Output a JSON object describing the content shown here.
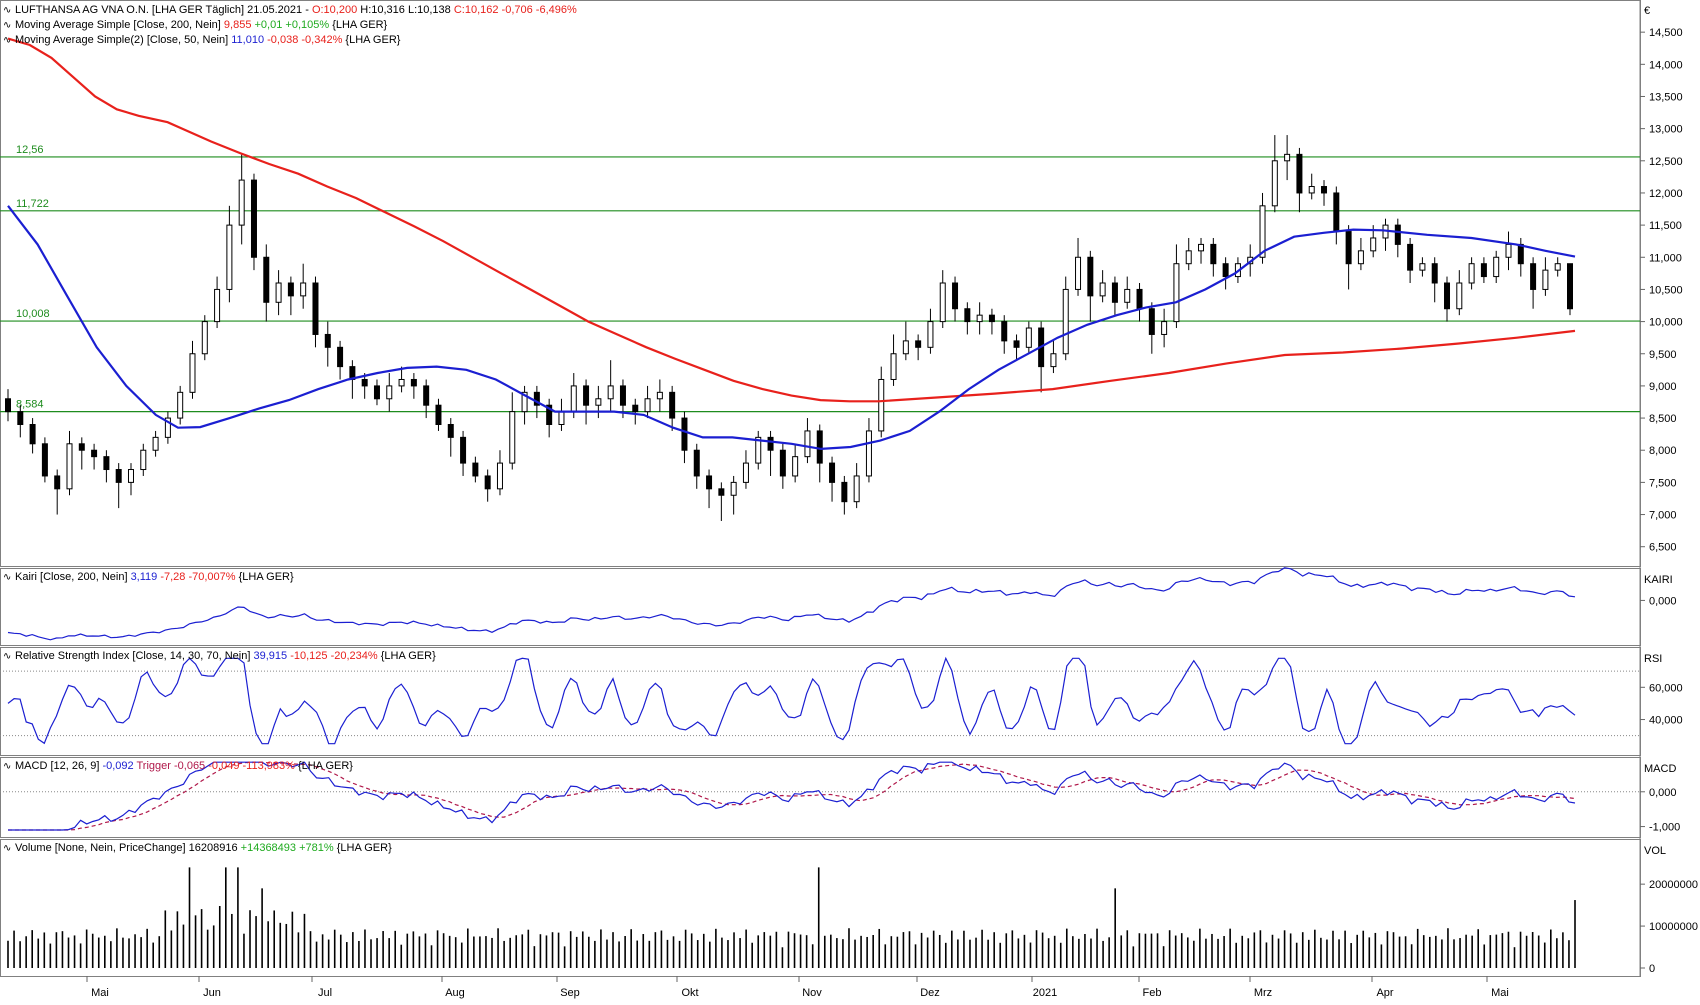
{
  "colors": {
    "price": "#000000",
    "ma200": "#e8211c",
    "ma50": "#1b1fd1",
    "support": "#1e8c1e",
    "indicator": "#1b1fd1",
    "trigger": "#b0184a",
    "up": "#1faa1f",
    "down": "#e8211c",
    "grid": "#9a9a9a"
  },
  "legend": {
    "main": [
      {
        "prefix": "LUFTHANSA AG VNA O.N. [LHA GER Täglich] 21.05.2021 - ",
        "o": "O:10,200",
        "h": " H:10,316",
        "l": " L:10,138",
        "c": " C:10,162",
        "chg": " -0,706",
        "pct": " -6,496%"
      },
      {
        "prefix": "Moving Average Simple [Close, 200, Nein] ",
        "val": "9,855",
        "chg": " +0,01",
        "pct": " +0,105%",
        "suffix": " {LHA GER}"
      },
      {
        "prefix": "Moving Average Simple(2) [Close, 50, Nein] ",
        "val": "11,010",
        "chg": " -0,038",
        "pct": " -0,342%",
        "suffix": " {LHA GER}"
      }
    ],
    "kairi": {
      "prefix": "Kairi [Close, 200, Nein] ",
      "val": "3,119",
      "chg": " -7,28",
      "pct": " -70,007%",
      "suffix": " {LHA GER}"
    },
    "rsi": {
      "prefix": "Relative Strength Index [Close, 14, 30, 70, Nein] ",
      "val": "39,915",
      "chg": " -10,125",
      "pct": " -20,234%",
      "suffix": " {LHA GER}"
    },
    "macd": {
      "prefix": "MACD [12, 26, 9] ",
      "val": "-0,092",
      "trig": " Trigger -0,065",
      "chg": " -0,049",
      "pct": " -113,983%",
      "suffix": " {LHA GER}"
    },
    "volume": {
      "prefix": "Volume [None, Nein, PriceChange] ",
      "val": "16208916",
      "chg": " +14368493",
      "pct": " +781%",
      "suffix": " {LHA GER}"
    }
  },
  "panel_labels": {
    "currency": "€",
    "kairi": "KAIRI",
    "rsi": "RSI",
    "macd": "MACD",
    "vol": "VOL"
  },
  "chart_data": {
    "type": "line",
    "instrument": "LUFTHANSA AG VNA O.N.",
    "x_months": [
      "Mai",
      "Jun",
      "Jul",
      "Aug",
      "Sep",
      "Okt",
      "Nov",
      "Dez",
      "2021",
      "Feb",
      "Mrz",
      "Apr",
      "Mai"
    ],
    "price_axis": {
      "ticks": [
        "14,500",
        "14,000",
        "13,500",
        "13,000",
        "12,500",
        "12,000",
        "11,500",
        "11,000",
        "10,500",
        "10,000",
        "9,500",
        "9,000",
        "8,500",
        "8,000",
        "7,500",
        "7,000",
        "6,500"
      ],
      "range": [
        6.2,
        15.0
      ]
    },
    "support_levels": [
      {
        "label": "12,56",
        "value": 12.56
      },
      {
        "label": "11,722",
        "value": 11.722
      },
      {
        "label": "10,008",
        "value": 10.008
      },
      {
        "label": "8,584",
        "value": 8.6
      }
    ],
    "candles": [
      [
        8.8,
        8.6,
        8.95,
        8.45
      ],
      [
        8.6,
        8.4,
        8.7,
        8.2
      ],
      [
        8.4,
        8.1,
        8.5,
        7.95
      ],
      [
        8.1,
        7.6,
        8.2,
        7.5
      ],
      [
        7.6,
        7.4,
        7.7,
        7.0
      ],
      [
        7.4,
        8.1,
        8.3,
        7.3
      ],
      [
        8.1,
        8.0,
        8.2,
        7.7
      ],
      [
        8.0,
        7.9,
        8.1,
        7.7
      ],
      [
        7.9,
        7.7,
        8.0,
        7.5
      ],
      [
        7.7,
        7.5,
        7.8,
        7.1
      ],
      [
        7.5,
        7.7,
        7.8,
        7.3
      ],
      [
        7.7,
        8.0,
        8.1,
        7.6
      ],
      [
        8.0,
        8.2,
        8.3,
        7.9
      ],
      [
        8.2,
        8.5,
        8.6,
        8.1
      ],
      [
        8.5,
        8.9,
        9.0,
        8.4
      ],
      [
        8.9,
        9.5,
        9.7,
        8.8
      ],
      [
        9.5,
        10.0,
        10.1,
        9.4
      ],
      [
        10.0,
        10.5,
        10.7,
        9.9
      ],
      [
        10.5,
        11.5,
        11.8,
        10.3
      ],
      [
        11.5,
        12.2,
        12.6,
        11.2
      ],
      [
        12.2,
        11.0,
        12.3,
        10.8
      ],
      [
        11.0,
        10.3,
        11.2,
        10.0
      ],
      [
        10.3,
        10.6,
        10.8,
        10.1
      ],
      [
        10.6,
        10.4,
        10.7,
        10.1
      ],
      [
        10.4,
        10.6,
        10.9,
        10.2
      ],
      [
        10.6,
        9.8,
        10.7,
        9.6
      ],
      [
        9.8,
        9.6,
        10.0,
        9.3
      ],
      [
        9.6,
        9.3,
        9.7,
        9.1
      ],
      [
        9.3,
        9.1,
        9.4,
        8.8
      ],
      [
        9.1,
        9.0,
        9.2,
        8.8
      ],
      [
        9.0,
        8.8,
        9.1,
        8.7
      ],
      [
        8.8,
        9.0,
        9.2,
        8.6
      ],
      [
        9.0,
        9.1,
        9.3,
        8.9
      ],
      [
        9.1,
        9.0,
        9.2,
        8.8
      ],
      [
        9.0,
        8.7,
        9.1,
        8.5
      ],
      [
        8.7,
        8.4,
        8.8,
        8.3
      ],
      [
        8.4,
        8.2,
        8.5,
        7.9
      ],
      [
        8.2,
        7.8,
        8.3,
        7.6
      ],
      [
        7.8,
        7.6,
        7.9,
        7.5
      ],
      [
        7.6,
        7.4,
        7.7,
        7.2
      ],
      [
        7.4,
        7.8,
        8.0,
        7.3
      ],
      [
        7.8,
        8.6,
        8.9,
        7.7
      ],
      [
        8.6,
        8.9,
        9.0,
        8.4
      ],
      [
        8.9,
        8.7,
        9.0,
        8.5
      ],
      [
        8.7,
        8.4,
        8.8,
        8.2
      ],
      [
        8.4,
        8.6,
        8.8,
        8.3
      ],
      [
        8.6,
        9.0,
        9.2,
        8.5
      ],
      [
        9.0,
        8.7,
        9.1,
        8.4
      ],
      [
        8.7,
        8.8,
        9.0,
        8.5
      ],
      [
        8.8,
        9.0,
        9.4,
        8.6
      ],
      [
        9.0,
        8.7,
        9.1,
        8.5
      ],
      [
        8.7,
        8.6,
        8.8,
        8.4
      ],
      [
        8.6,
        8.8,
        9.0,
        8.5
      ],
      [
        8.8,
        8.9,
        9.1,
        8.6
      ],
      [
        8.9,
        8.5,
        9.0,
        8.3
      ],
      [
        8.5,
        8.0,
        8.6,
        7.8
      ],
      [
        8.0,
        7.6,
        8.1,
        7.4
      ],
      [
        7.6,
        7.4,
        7.7,
        7.1
      ],
      [
        7.4,
        7.3,
        7.5,
        6.9
      ],
      [
        7.3,
        7.5,
        7.6,
        7.0
      ],
      [
        7.5,
        7.8,
        8.0,
        7.4
      ],
      [
        7.8,
        8.2,
        8.3,
        7.7
      ],
      [
        8.2,
        8.0,
        8.3,
        7.6
      ],
      [
        8.0,
        7.6,
        8.1,
        7.4
      ],
      [
        7.6,
        7.9,
        8.1,
        7.5
      ],
      [
        7.9,
        8.3,
        8.5,
        7.8
      ],
      [
        8.3,
        7.8,
        8.4,
        7.5
      ],
      [
        7.8,
        7.5,
        7.9,
        7.2
      ],
      [
        7.5,
        7.2,
        7.6,
        7.0
      ],
      [
        7.2,
        7.6,
        7.8,
        7.1
      ],
      [
        7.6,
        8.3,
        8.5,
        7.5
      ],
      [
        8.3,
        9.1,
        9.3,
        8.2
      ],
      [
        9.1,
        9.5,
        9.8,
        9.0
      ],
      [
        9.5,
        9.7,
        10.0,
        9.4
      ],
      [
        9.7,
        9.6,
        9.8,
        9.4
      ],
      [
        9.6,
        10.0,
        10.2,
        9.5
      ],
      [
        10.0,
        10.6,
        10.8,
        9.9
      ],
      [
        10.6,
        10.2,
        10.7,
        10.0
      ],
      [
        10.2,
        10.0,
        10.3,
        9.8
      ],
      [
        10.0,
        10.1,
        10.3,
        9.8
      ],
      [
        10.1,
        10.0,
        10.2,
        9.8
      ],
      [
        10.0,
        9.7,
        10.1,
        9.5
      ],
      [
        9.7,
        9.6,
        9.8,
        9.4
      ],
      [
        9.6,
        9.9,
        10.0,
        9.5
      ],
      [
        9.9,
        9.3,
        10.0,
        8.9
      ],
      [
        9.3,
        9.5,
        9.7,
        9.2
      ],
      [
        9.5,
        10.5,
        10.7,
        9.4
      ],
      [
        10.5,
        11.0,
        11.3,
        10.4
      ],
      [
        11.0,
        10.4,
        11.1,
        10.0
      ],
      [
        10.4,
        10.6,
        10.8,
        10.3
      ],
      [
        10.6,
        10.3,
        10.7,
        10.1
      ],
      [
        10.3,
        10.5,
        10.7,
        10.2
      ],
      [
        10.5,
        10.2,
        10.6,
        10.0
      ],
      [
        10.2,
        9.8,
        10.3,
        9.5
      ],
      [
        9.8,
        10.0,
        10.2,
        9.6
      ],
      [
        10.0,
        10.9,
        11.2,
        9.9
      ],
      [
        10.9,
        11.1,
        11.3,
        10.8
      ],
      [
        11.1,
        11.2,
        11.3,
        10.9
      ],
      [
        11.2,
        10.9,
        11.3,
        10.7
      ],
      [
        10.9,
        10.7,
        11.0,
        10.5
      ],
      [
        10.7,
        10.9,
        11.0,
        10.6
      ],
      [
        10.9,
        11.0,
        11.2,
        10.7
      ],
      [
        11.0,
        11.8,
        12.0,
        10.9
      ],
      [
        11.8,
        12.5,
        12.9,
        11.7
      ],
      [
        12.5,
        12.6,
        12.9,
        12.2
      ],
      [
        12.6,
        12.0,
        12.7,
        11.7
      ],
      [
        12.0,
        12.1,
        12.3,
        11.9
      ],
      [
        12.1,
        12.0,
        12.2,
        11.8
      ],
      [
        12.0,
        11.4,
        12.1,
        11.2
      ],
      [
        11.4,
        10.9,
        11.5,
        10.5
      ],
      [
        10.9,
        11.1,
        11.3,
        10.8
      ],
      [
        11.1,
        11.3,
        11.5,
        11.0
      ],
      [
        11.3,
        11.5,
        11.6,
        11.1
      ],
      [
        11.5,
        11.2,
        11.6,
        11.0
      ],
      [
        11.2,
        10.8,
        11.3,
        10.6
      ],
      [
        10.8,
        10.9,
        11.0,
        10.7
      ],
      [
        10.9,
        10.6,
        11.0,
        10.3
      ],
      [
        10.6,
        10.2,
        10.7,
        10.0
      ],
      [
        10.2,
        10.6,
        10.8,
        10.1
      ],
      [
        10.6,
        10.9,
        11.0,
        10.5
      ],
      [
        10.9,
        10.7,
        11.0,
        10.6
      ],
      [
        10.7,
        11.0,
        11.1,
        10.6
      ],
      [
        11.0,
        11.2,
        11.4,
        10.8
      ],
      [
        11.2,
        10.9,
        11.3,
        10.7
      ],
      [
        10.9,
        10.5,
        11.0,
        10.2
      ],
      [
        10.5,
        10.8,
        11.0,
        10.4
      ],
      [
        10.8,
        10.9,
        11.0,
        10.7
      ],
      [
        10.9,
        10.2,
        10.9,
        10.1
      ]
    ],
    "sma_200": [
      [
        0,
        14.4
      ],
      [
        15,
        14.3
      ],
      [
        30,
        14.1
      ],
      [
        45,
        13.8
      ],
      [
        60,
        13.5
      ],
      [
        75,
        13.3
      ],
      [
        90,
        13.2
      ],
      [
        110,
        13.1
      ],
      [
        125,
        12.95
      ],
      [
        140,
        12.8
      ],
      [
        160,
        12.62
      ],
      [
        180,
        12.45
      ],
      [
        200,
        12.3
      ],
      [
        220,
        12.1
      ],
      [
        240,
        11.92
      ],
      [
        260,
        11.7
      ],
      [
        280,
        11.48
      ],
      [
        300,
        11.25
      ],
      [
        320,
        11.0
      ],
      [
        340,
        10.75
      ],
      [
        360,
        10.5
      ],
      [
        380,
        10.25
      ],
      [
        400,
        10.0
      ],
      [
        420,
        9.8
      ],
      [
        440,
        9.6
      ],
      [
        460,
        9.42
      ],
      [
        480,
        9.25
      ],
      [
        500,
        9.08
      ],
      [
        520,
        8.95
      ],
      [
        540,
        8.85
      ],
      [
        560,
        8.78
      ],
      [
        580,
        8.76
      ],
      [
        600,
        8.76
      ],
      [
        640,
        8.82
      ],
      [
        680,
        8.88
      ],
      [
        720,
        8.95
      ],
      [
        760,
        9.08
      ],
      [
        800,
        9.2
      ],
      [
        840,
        9.35
      ],
      [
        880,
        9.48
      ],
      [
        920,
        9.52
      ],
      [
        960,
        9.58
      ],
      [
        1000,
        9.66
      ],
      [
        1040,
        9.75
      ],
      [
        1080,
        9.855
      ]
    ],
    "sma_50": [
      [
        0,
        11.8
      ],
      [
        20,
        11.2
      ],
      [
        40,
        10.4
      ],
      [
        60,
        9.6
      ],
      [
        80,
        9.0
      ],
      [
        100,
        8.55
      ],
      [
        115,
        8.35
      ],
      [
        130,
        8.36
      ],
      [
        150,
        8.5
      ],
      [
        170,
        8.65
      ],
      [
        190,
        8.78
      ],
      [
        210,
        8.95
      ],
      [
        230,
        9.1
      ],
      [
        250,
        9.2
      ],
      [
        270,
        9.28
      ],
      [
        290,
        9.3
      ],
      [
        310,
        9.25
      ],
      [
        330,
        9.1
      ],
      [
        350,
        8.85
      ],
      [
        370,
        8.6
      ],
      [
        390,
        8.6
      ],
      [
        410,
        8.6
      ],
      [
        430,
        8.55
      ],
      [
        450,
        8.35
      ],
      [
        470,
        8.2
      ],
      [
        490,
        8.2
      ],
      [
        510,
        8.15
      ],
      [
        530,
        8.1
      ],
      [
        550,
        8.02
      ],
      [
        570,
        8.05
      ],
      [
        590,
        8.15
      ],
      [
        610,
        8.3
      ],
      [
        630,
        8.6
      ],
      [
        650,
        8.95
      ],
      [
        670,
        9.25
      ],
      [
        690,
        9.5
      ],
      [
        710,
        9.75
      ],
      [
        730,
        9.95
      ],
      [
        750,
        10.1
      ],
      [
        770,
        10.22
      ],
      [
        790,
        10.3
      ],
      [
        810,
        10.5
      ],
      [
        830,
        10.75
      ],
      [
        850,
        11.1
      ],
      [
        870,
        11.32
      ],
      [
        890,
        11.38
      ],
      [
        910,
        11.43
      ],
      [
        930,
        11.42
      ],
      [
        960,
        11.35
      ],
      [
        990,
        11.3
      ],
      [
        1020,
        11.2
      ],
      [
        1040,
        11.1
      ],
      [
        1060,
        11.01
      ]
    ],
    "kairi_y_tick": "0,000",
    "rsi_y_ticks": [
      "60,000",
      "40,000"
    ],
    "rsi_levels": [
      70,
      30
    ],
    "macd_y_ticks": [
      "0,000",
      "-1,000"
    ],
    "volume_y_ticks": [
      "20000000",
      "10000000",
      "0"
    ],
    "last_volume": 16208916
  }
}
